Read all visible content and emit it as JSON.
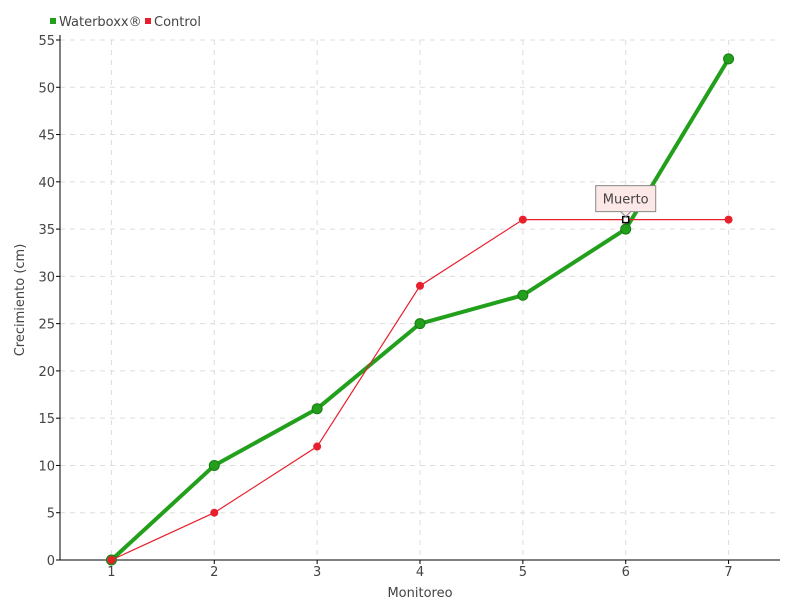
{
  "chart_data": {
    "type": "line",
    "title": "",
    "xlabel": "Monitoreo",
    "ylabel": "Crecimiento (cm)",
    "x": [
      1,
      2,
      3,
      4,
      5,
      6,
      7
    ],
    "xlim": [
      0.5,
      7.5
    ],
    "ylim": [
      0,
      55
    ],
    "yticks": [
      0,
      5,
      10,
      15,
      20,
      25,
      30,
      35,
      40,
      45,
      50,
      55
    ],
    "grid": true,
    "legend_position": "top-left",
    "series": [
      {
        "name": "Waterboxx®",
        "color": "#22a01c",
        "values": [
          0,
          10,
          16,
          25,
          28,
          35,
          53
        ]
      },
      {
        "name": "Control",
        "color": "#e8202e",
        "values": [
          0,
          5,
          12,
          29,
          36,
          36,
          36
        ]
      }
    ],
    "annotation": {
      "text": "Muerto",
      "series": "Control",
      "x": 6,
      "y": 36
    }
  }
}
